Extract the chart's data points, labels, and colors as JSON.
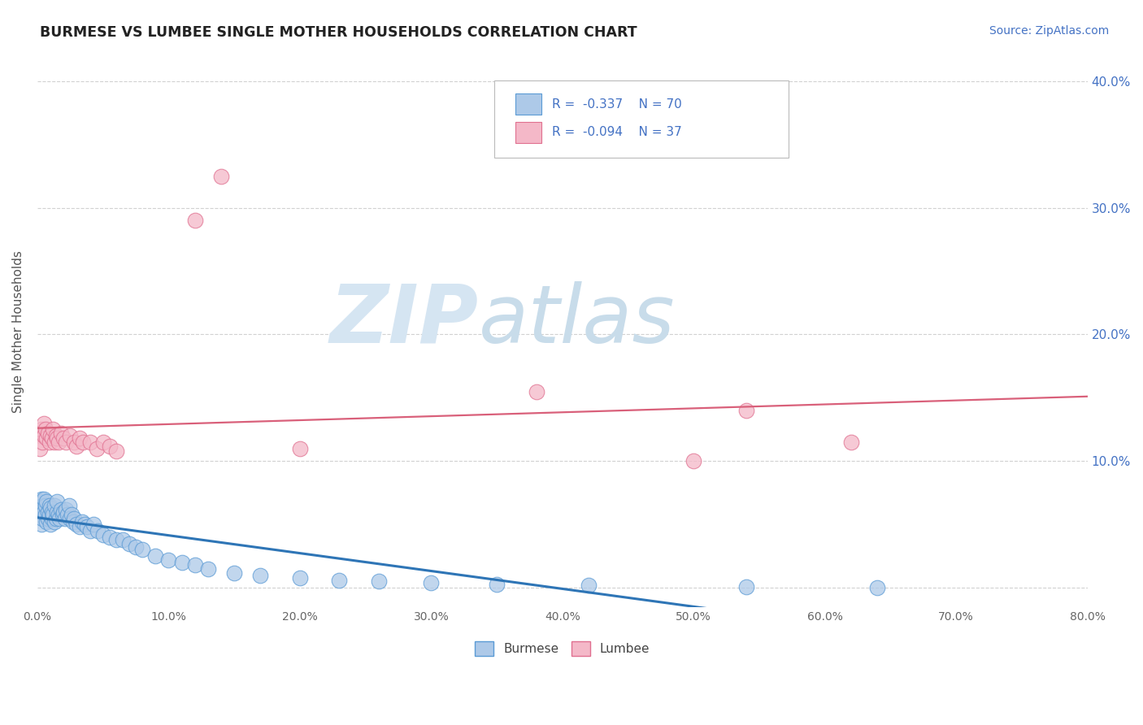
{
  "title": "BURMESE VS LUMBEE SINGLE MOTHER HOUSEHOLDS CORRELATION CHART",
  "source_text": "Source: ZipAtlas.com",
  "ylabel": "Single Mother Households",
  "xmin": 0.0,
  "xmax": 0.8,
  "ymin": -0.015,
  "ymax": 0.42,
  "yticks": [
    0.0,
    0.1,
    0.2,
    0.3,
    0.4
  ],
  "burmese_R": -0.337,
  "burmese_N": 70,
  "lumbee_R": -0.094,
  "lumbee_N": 37,
  "burmese_color": "#adc9e8",
  "burmese_edge": "#5b9bd5",
  "lumbee_color": "#f4b8c8",
  "lumbee_edge": "#e07090",
  "trend_burmese_color": "#2e75b6",
  "trend_lumbee_color": "#d9607a",
  "watermark_zip": "ZIP",
  "watermark_atlas": "atlas",
  "watermark_color_zip": "#c8daea",
  "watermark_color_atlas": "#c8daea",
  "legend_text_color": "#4472c4",
  "background_color": "#ffffff",
  "burmese_x": [
    0.001,
    0.002,
    0.002,
    0.003,
    0.003,
    0.004,
    0.004,
    0.005,
    0.005,
    0.006,
    0.006,
    0.007,
    0.007,
    0.008,
    0.008,
    0.009,
    0.009,
    0.01,
    0.01,
    0.011,
    0.011,
    0.012,
    0.013,
    0.013,
    0.014,
    0.015,
    0.015,
    0.016,
    0.017,
    0.018,
    0.019,
    0.02,
    0.021,
    0.022,
    0.023,
    0.024,
    0.025,
    0.026,
    0.027,
    0.028,
    0.03,
    0.032,
    0.034,
    0.036,
    0.038,
    0.04,
    0.043,
    0.046,
    0.05,
    0.055,
    0.06,
    0.065,
    0.07,
    0.075,
    0.08,
    0.09,
    0.1,
    0.11,
    0.12,
    0.13,
    0.15,
    0.17,
    0.2,
    0.23,
    0.26,
    0.3,
    0.35,
    0.42,
    0.54,
    0.64
  ],
  "burmese_y": [
    0.062,
    0.058,
    0.068,
    0.05,
    0.07,
    0.055,
    0.065,
    0.06,
    0.07,
    0.058,
    0.065,
    0.052,
    0.068,
    0.055,
    0.06,
    0.058,
    0.065,
    0.05,
    0.063,
    0.055,
    0.06,
    0.058,
    0.065,
    0.052,
    0.055,
    0.06,
    0.068,
    0.058,
    0.055,
    0.062,
    0.058,
    0.06,
    0.055,
    0.062,
    0.058,
    0.065,
    0.055,
    0.058,
    0.052,
    0.055,
    0.05,
    0.048,
    0.052,
    0.05,
    0.048,
    0.045,
    0.05,
    0.045,
    0.042,
    0.04,
    0.038,
    0.038,
    0.035,
    0.032,
    0.03,
    0.025,
    0.022,
    0.02,
    0.018,
    0.015,
    0.012,
    0.01,
    0.008,
    0.006,
    0.005,
    0.004,
    0.003,
    0.002,
    0.001,
    0.0
  ],
  "lumbee_x": [
    0.001,
    0.002,
    0.003,
    0.004,
    0.005,
    0.005,
    0.006,
    0.007,
    0.008,
    0.009,
    0.01,
    0.011,
    0.012,
    0.013,
    0.014,
    0.015,
    0.016,
    0.018,
    0.02,
    0.022,
    0.025,
    0.028,
    0.03,
    0.032,
    0.035,
    0.04,
    0.045,
    0.05,
    0.055,
    0.06,
    0.12,
    0.14,
    0.2,
    0.38,
    0.5,
    0.54,
    0.62
  ],
  "lumbee_y": [
    0.12,
    0.11,
    0.125,
    0.115,
    0.13,
    0.12,
    0.125,
    0.118,
    0.122,
    0.115,
    0.12,
    0.118,
    0.125,
    0.115,
    0.12,
    0.118,
    0.115,
    0.122,
    0.118,
    0.115,
    0.12,
    0.115,
    0.112,
    0.118,
    0.115,
    0.115,
    0.11,
    0.115,
    0.112,
    0.108,
    0.29,
    0.325,
    0.11,
    0.155,
    0.1,
    0.14,
    0.115
  ]
}
